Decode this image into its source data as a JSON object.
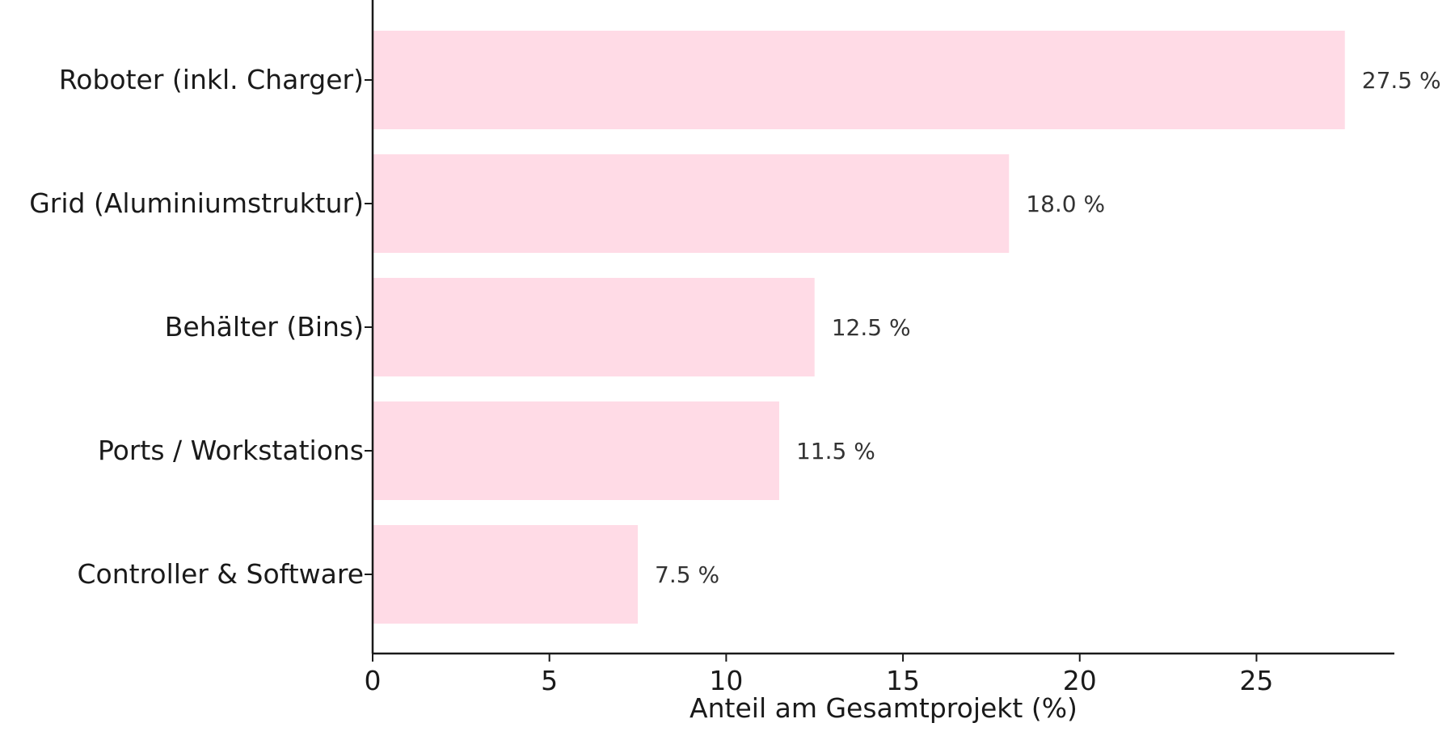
{
  "chart_data": {
    "type": "bar",
    "orientation": "horizontal",
    "categories": [
      "Roboter (inkl. Charger)",
      "Grid (Aluminiumstruktur)",
      "Behälter (Bins)",
      "Ports / Workstations",
      "Controller & Software"
    ],
    "values": [
      27.5,
      18.0,
      12.5,
      11.5,
      7.5
    ],
    "value_labels": [
      "27.5 %",
      "18.0 %",
      "12.5 %",
      "11.5 %",
      "7.5 %"
    ],
    "title": "",
    "xlabel": "Anteil am Gesamtprojekt (%)",
    "ylabel": "",
    "xlim": [
      0,
      28.9
    ],
    "xticks": [
      0,
      5,
      10,
      15,
      20,
      25
    ],
    "xtick_labels": [
      "0",
      "5",
      "10",
      "15",
      "20",
      "25"
    ],
    "grid": false,
    "legend": "none",
    "bar_color": "#ffdbe6",
    "axis_color": "#1a1a1a"
  }
}
